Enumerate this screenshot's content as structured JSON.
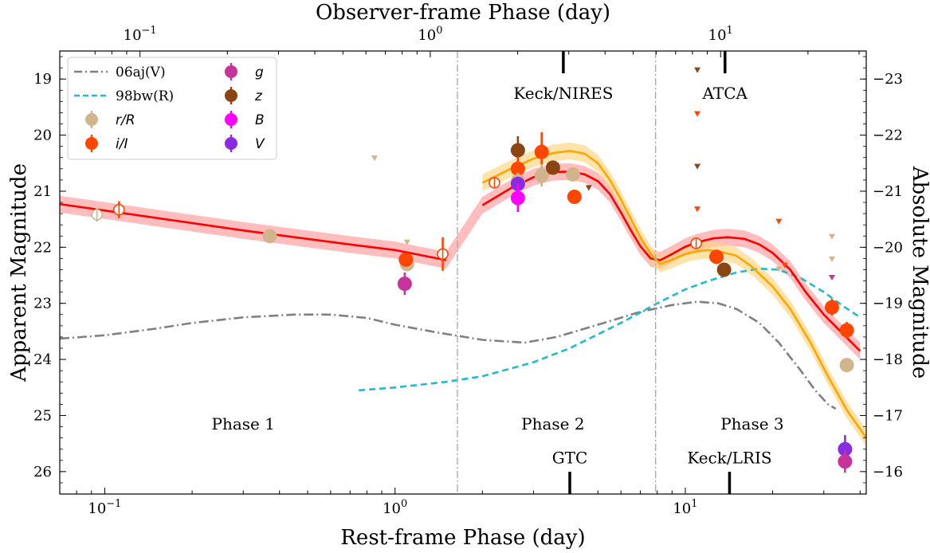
{
  "chart_data": {
    "type": "scatter",
    "xlabel": "Rest-frame Phase (day)",
    "x2label": "Observer-frame Phase (day)",
    "ylabel": "Apparent Magnitude",
    "y2label": "Absolute Magnitude",
    "xscale": "log",
    "xlim": [
      0.07,
      42
    ],
    "ylim": [
      26.4,
      18.5
    ],
    "x_ticks": [
      {
        "v": 0.1,
        "b": "10",
        "e": "−1"
      },
      {
        "v": 1,
        "b": "10",
        "e": "0"
      },
      {
        "v": 10,
        "b": "10",
        "e": "1"
      }
    ],
    "x2_ticks": [
      {
        "v": 0.1,
        "b": "10",
        "e": "−1"
      },
      {
        "v": 1,
        "b": "10",
        "e": "0"
      },
      {
        "v": 10,
        "b": "10",
        "e": "1"
      }
    ],
    "observer_to_rest_factor": 0.756,
    "y_ticks": [
      19,
      20,
      21,
      22,
      23,
      24,
      25,
      26
    ],
    "abs_mag_offset": 42.0,
    "y2_ticks": [
      "−23",
      "−22",
      "−21",
      "−20",
      "−19",
      "−18",
      "−17",
      "−16"
    ],
    "phase_boundaries": [
      1.64,
      7.9
    ],
    "phase_labels": [
      {
        "text": "Phase 1",
        "x": 0.3,
        "y": 25.15
      },
      {
        "text": "Phase 2",
        "x": 3.5,
        "y": 25.15
      },
      {
        "text": "Phase 3",
        "x": 17,
        "y": 25.15
      }
    ],
    "instruments": [
      {
        "text": "Keck/NIRES",
        "x": 3.8,
        "y": 19.25,
        "tick_x": 3.8,
        "side": "top"
      },
      {
        "text": "ATCA",
        "x": 13.7,
        "y": 19.25,
        "tick_x": 13.7,
        "side": "top"
      },
      {
        "text": "GTC",
        "x": 4.0,
        "y": 25.75,
        "tick_x": 4.0,
        "side": "bottom"
      },
      {
        "text": "Keck/LRIS",
        "x": 14.2,
        "y": 25.75,
        "tick_x": 14.2,
        "side": "bottom"
      }
    ],
    "legend": [
      {
        "name": "06aj(V)",
        "kind": "dashdot",
        "color": "#808080"
      },
      {
        "name": "98bw(R)",
        "kind": "dashed",
        "color": "#22bbcc"
      },
      {
        "name": "r/R",
        "kind": "errpoint",
        "color": "#d2b48c"
      },
      {
        "name": "i/I",
        "kind": "errpoint",
        "color": "#ff4500"
      },
      {
        "name": "g",
        "kind": "errpoint",
        "color": "#c8329b"
      },
      {
        "name": "z",
        "kind": "errpoint",
        "color": "#8b4513"
      },
      {
        "name": "B",
        "kind": "errpoint",
        "color": "#ff00ff"
      },
      {
        "name": "V",
        "kind": "errpoint",
        "color": "#8a2be2"
      }
    ],
    "series": [
      {
        "name": "06aj(V)",
        "color": "#808080",
        "points": [
          [
            0.07,
            23.63
          ],
          [
            0.1,
            23.57
          ],
          [
            0.15,
            23.45
          ],
          [
            0.2,
            23.35
          ],
          [
            0.3,
            23.25
          ],
          [
            0.45,
            23.2
          ],
          [
            0.6,
            23.2
          ],
          [
            0.8,
            23.26
          ],
          [
            1.0,
            23.38
          ],
          [
            1.4,
            23.52
          ],
          [
            2.0,
            23.65
          ],
          [
            2.8,
            23.7
          ],
          [
            3.6,
            23.6
          ],
          [
            5.0,
            23.38
          ],
          [
            7.0,
            23.15
          ],
          [
            9.0,
            23.03
          ],
          [
            11.0,
            22.97
          ],
          [
            13.0,
            23.0
          ],
          [
            15.0,
            23.1
          ],
          [
            18.0,
            23.35
          ],
          [
            21.0,
            23.7
          ],
          [
            25.0,
            24.2
          ],
          [
            28.0,
            24.55
          ],
          [
            31.0,
            24.8
          ],
          [
            33.0,
            24.88
          ]
        ]
      },
      {
        "name": "98bw(R)",
        "color": "#22bbcc",
        "points": [
          [
            0.75,
            24.55
          ],
          [
            1.0,
            24.5
          ],
          [
            1.5,
            24.4
          ],
          [
            2.0,
            24.3
          ],
          [
            3.0,
            24.05
          ],
          [
            4.0,
            23.8
          ],
          [
            6.0,
            23.35
          ],
          [
            8.0,
            23.0
          ],
          [
            10.0,
            22.75
          ],
          [
            12.0,
            22.6
          ],
          [
            15.0,
            22.45
          ],
          [
            18.0,
            22.38
          ],
          [
            21.0,
            22.4
          ],
          [
            25.0,
            22.55
          ],
          [
            30.0,
            22.8
          ],
          [
            35.0,
            23.05
          ],
          [
            40.0,
            23.25
          ]
        ]
      },
      {
        "name": "model-red",
        "color": "#ff0000",
        "band": "#ff9999",
        "points": [
          [
            0.07,
            21.23
          ],
          [
            0.3,
            21.7
          ],
          [
            0.7,
            21.95
          ],
          [
            1.0,
            22.05
          ],
          [
            1.5,
            22.23
          ],
          [
            2.0,
            21.25
          ],
          [
            2.5,
            20.95
          ],
          [
            3.0,
            20.75
          ],
          [
            3.5,
            20.66
          ],
          [
            4.0,
            20.65
          ],
          [
            4.5,
            20.7
          ],
          [
            5.0,
            20.82
          ],
          [
            5.5,
            21.05
          ],
          [
            6.0,
            21.38
          ],
          [
            6.5,
            21.7
          ],
          [
            7.0,
            21.98
          ],
          [
            7.6,
            22.2
          ],
          [
            8.2,
            22.23
          ],
          [
            9.0,
            22.12
          ],
          [
            10.0,
            21.99
          ],
          [
            11.0,
            21.91
          ],
          [
            12.5,
            21.84
          ],
          [
            14.0,
            21.82
          ],
          [
            16.0,
            21.85
          ],
          [
            18.0,
            21.95
          ],
          [
            20.0,
            22.1
          ],
          [
            23.0,
            22.4
          ],
          [
            26.0,
            22.8
          ],
          [
            30.0,
            23.2
          ],
          [
            35.0,
            23.55
          ],
          [
            40.0,
            23.85
          ]
        ]
      },
      {
        "name": "model-orange",
        "color": "#ffa500",
        "band": "#ffd480",
        "points": [
          [
            2.0,
            20.85
          ],
          [
            2.5,
            20.6
          ],
          [
            3.0,
            20.42
          ],
          [
            3.5,
            20.32
          ],
          [
            4.0,
            20.28
          ],
          [
            4.5,
            20.33
          ],
          [
            5.0,
            20.5
          ],
          [
            5.5,
            20.8
          ],
          [
            6.0,
            21.15
          ],
          [
            6.5,
            21.5
          ],
          [
            7.0,
            21.82
          ],
          [
            7.6,
            22.12
          ],
          [
            8.2,
            22.3
          ],
          [
            9.0,
            22.22
          ],
          [
            10.0,
            22.12
          ],
          [
            11.0,
            22.07
          ],
          [
            12.0,
            22.05
          ],
          [
            13.0,
            22.07
          ],
          [
            15.0,
            22.15
          ],
          [
            17.0,
            22.35
          ],
          [
            20.0,
            22.7
          ],
          [
            23.0,
            23.1
          ],
          [
            27.0,
            23.7
          ],
          [
            31.0,
            24.3
          ],
          [
            36.0,
            24.9
          ],
          [
            42.0,
            25.4
          ]
        ]
      }
    ],
    "points": [
      {
        "band": "r/R",
        "x": 0.094,
        "y": 21.42,
        "err": 0.12,
        "hollow": true
      },
      {
        "band": "i/I",
        "x": 0.112,
        "y": 21.33,
        "err": 0.15,
        "hollow": true
      },
      {
        "band": "r/R",
        "x": 0.37,
        "y": 21.8,
        "err": 0.05,
        "hollow": false
      },
      {
        "band": "r/R",
        "x": 1.1,
        "y": 22.3,
        "err": 0.1,
        "hollow": false
      },
      {
        "band": "i/I",
        "x": 1.09,
        "y": 22.22,
        "err": 0.12,
        "hollow": false
      },
      {
        "band": "g",
        "x": 1.08,
        "y": 22.65,
        "err": 0.2,
        "hollow": false
      },
      {
        "band": "i/I",
        "x": 1.46,
        "y": 22.12,
        "err": 0.3,
        "hollow": true
      },
      {
        "band": "i/I",
        "x": 2.2,
        "y": 20.85,
        "err": 0.1,
        "hollow": true
      },
      {
        "band": "z",
        "x": 2.65,
        "y": 20.27,
        "err": 0.25,
        "hollow": false
      },
      {
        "band": "i/I",
        "x": 2.65,
        "y": 20.6,
        "err": 0.2,
        "hollow": false
      },
      {
        "band": "r/R",
        "x": 2.65,
        "y": 20.82,
        "err": 0.15,
        "hollow": false
      },
      {
        "band": "V",
        "x": 2.65,
        "y": 20.87,
        "err": 0.12,
        "hollow": false
      },
      {
        "band": "B",
        "x": 2.65,
        "y": 21.12,
        "err": 0.25,
        "hollow": false
      },
      {
        "band": "i/I",
        "x": 3.2,
        "y": 20.3,
        "err": 0.35,
        "hollow": false
      },
      {
        "band": "r/R",
        "x": 3.2,
        "y": 20.72,
        "err": 0.2,
        "hollow": false
      },
      {
        "band": "z",
        "x": 3.5,
        "y": 20.58,
        "err": 0.12,
        "hollow": false
      },
      {
        "band": "r/R",
        "x": 4.1,
        "y": 20.7,
        "err": 0.1,
        "hollow": false
      },
      {
        "band": "i/I",
        "x": 4.15,
        "y": 21.1,
        "err": 0.1,
        "hollow": false
      },
      {
        "band": "i/I",
        "x": 10.9,
        "y": 21.93,
        "err": 0.1,
        "hollow": true
      },
      {
        "band": "i/I",
        "x": 12.8,
        "y": 22.17,
        "err": 0.1,
        "hollow": false
      },
      {
        "band": "z",
        "x": 13.6,
        "y": 22.4,
        "err": 0.1,
        "hollow": false
      },
      {
        "band": "i/I",
        "x": 32.0,
        "y": 23.07,
        "err": 0.15,
        "hollow": false
      },
      {
        "band": "i/I",
        "x": 36.0,
        "y": 23.48,
        "err": 0.15,
        "hollow": false
      },
      {
        "band": "r/R",
        "x": 36.0,
        "y": 24.1,
        "err": 0.05,
        "hollow": false
      },
      {
        "band": "V",
        "x": 35.5,
        "y": 25.6,
        "err": 0.25,
        "hollow": false
      },
      {
        "band": "g",
        "x": 35.5,
        "y": 25.82,
        "err": 0.2,
        "hollow": false
      }
    ],
    "upper_limits": [
      {
        "band": "r/R",
        "x": 0.85,
        "y": 20.42
      },
      {
        "band": "r/R",
        "x": 1.1,
        "y": 21.92
      },
      {
        "band": "z",
        "x": 4.65,
        "y": 20.95
      },
      {
        "band": "z",
        "x": 11.0,
        "y": 18.85
      },
      {
        "band": "i/I",
        "x": 11.0,
        "y": 19.63
      },
      {
        "band": "z",
        "x": 11.0,
        "y": 20.57
      },
      {
        "band": "i/I",
        "x": 11.0,
        "y": 21.33
      },
      {
        "band": "i/I",
        "x": 21.0,
        "y": 21.55
      },
      {
        "band": "i/I",
        "x": 22.0,
        "y": 22.33
      },
      {
        "band": "r/R",
        "x": 21.0,
        "y": 22.4
      },
      {
        "band": "r/R",
        "x": 32.0,
        "y": 21.82
      },
      {
        "band": "r/R",
        "x": 32.0,
        "y": 22.22
      },
      {
        "band": "g",
        "x": 32.0,
        "y": 22.55
      }
    ]
  }
}
